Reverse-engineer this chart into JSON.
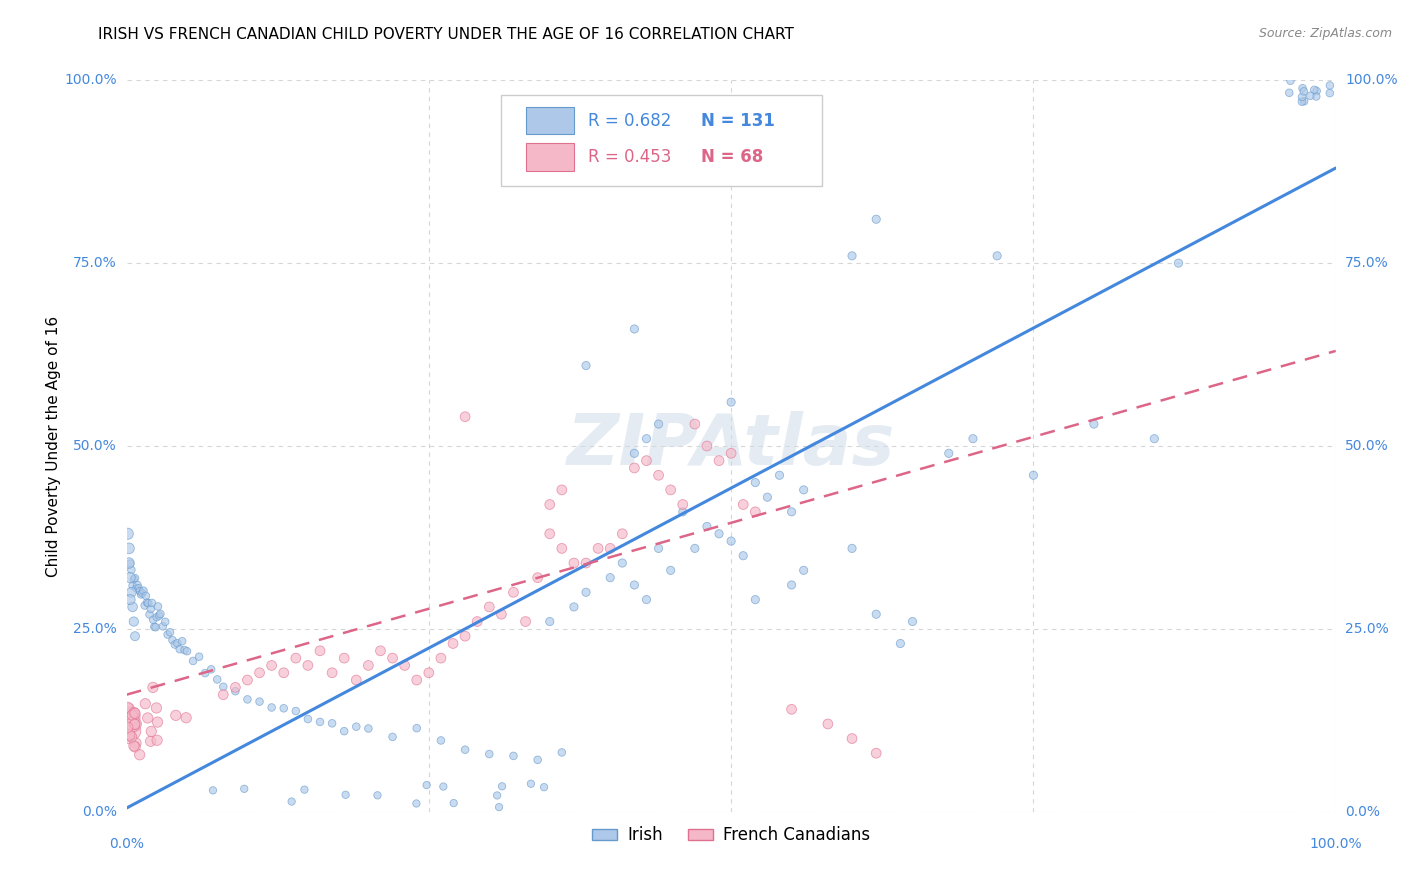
{
  "title": "IRISH VS FRENCH CANADIAN CHILD POVERTY UNDER THE AGE OF 16 CORRELATION CHART",
  "source": "Source: ZipAtlas.com",
  "ylabel": "Child Poverty Under the Age of 16",
  "legend_label1": "Irish",
  "legend_label2": "French Canadians",
  "R1": 0.682,
  "N1": 131,
  "R2": 0.453,
  "N2": 68,
  "xlim": [
    0,
    1
  ],
  "ylim": [
    0,
    1
  ],
  "ytick_labels": [
    "0.0%",
    "25.0%",
    "50.0%",
    "75.0%",
    "100.0%"
  ],
  "ytick_positions": [
    0.0,
    0.25,
    0.5,
    0.75,
    1.0
  ],
  "xtick_labels": [
    "0.0%",
    "100.0%"
  ],
  "xtick_positions": [
    0.0,
    1.0
  ],
  "background_color": "#ffffff",
  "grid_color": "#cccccc",
  "blue_fill": "#adc8e8",
  "pink_fill": "#f5b8c8",
  "blue_edge": "#6699cc",
  "pink_edge": "#e07090",
  "blue_line": "#4488dd",
  "pink_line": "#dd6688",
  "title_fontsize": 11,
  "label_fontsize": 10,
  "axis_label_fontsize": 11,
  "source_fontsize": 9
}
